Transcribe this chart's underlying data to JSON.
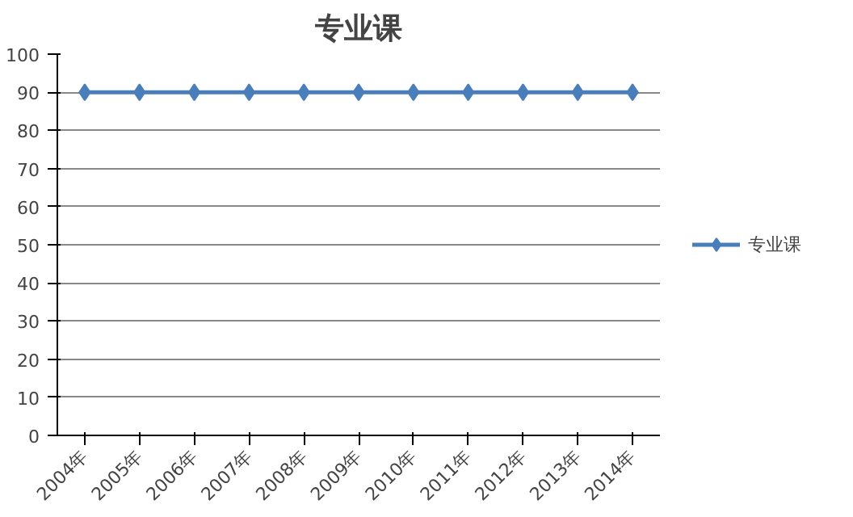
{
  "chart_data": {
    "type": "line",
    "title": "专业课",
    "categories": [
      "2004年",
      "2005年",
      "2006年",
      "2007年",
      "2008年",
      "2009年",
      "2010年",
      "2011年",
      "2012年",
      "2013年",
      "2014年"
    ],
    "series": [
      {
        "name": "专业课",
        "color": "#4a7ebb",
        "values": [
          90,
          90,
          90,
          90,
          90,
          90,
          90,
          90,
          90,
          90,
          90
        ]
      }
    ],
    "ylim": [
      0,
      100
    ],
    "yticks": [
      0,
      10,
      20,
      30,
      40,
      50,
      60,
      70,
      80,
      90,
      100
    ],
    "grid": "y",
    "legend": "right",
    "marker": "diamond",
    "line_style": "solid"
  }
}
